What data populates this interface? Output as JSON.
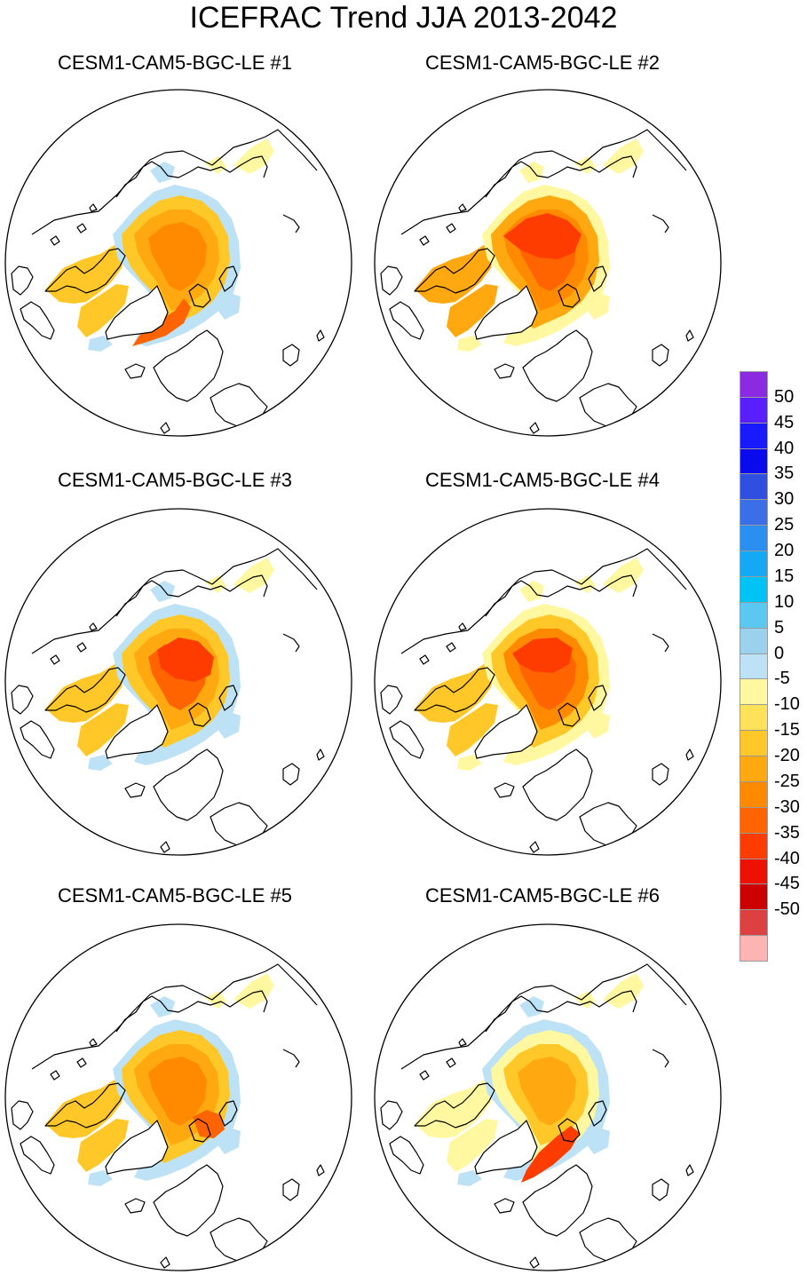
{
  "figure": {
    "title": "ICEFRAC Trend JJA 2013-2042",
    "panels": [
      {
        "title": "CESM1-CAM5-BGC-LE #1",
        "variant": "m1"
      },
      {
        "title": "CESM1-CAM5-BGC-LE #2",
        "variant": "m2"
      },
      {
        "title": "CESM1-CAM5-BGC-LE #3",
        "variant": "m3"
      },
      {
        "title": "CESM1-CAM5-BGC-LE #4",
        "variant": "m4"
      },
      {
        "title": "CESM1-CAM5-BGC-LE #5",
        "variant": "m5"
      },
      {
        "title": "CESM1-CAM5-BGC-LE #6",
        "variant": "m6"
      }
    ]
  },
  "colorbar": {
    "labels": [
      "50",
      "45",
      "40",
      "35",
      "30",
      "25",
      "20",
      "15",
      "10",
      "5",
      "0",
      "-5",
      "-10",
      "-15",
      "-20",
      "-25",
      "-30",
      "-35",
      "-40",
      "-45",
      "-50"
    ],
    "colors": [
      "#8a2be2",
      "#5a1fff",
      "#1a1aff",
      "#0a0aee",
      "#2e4fe0",
      "#3a6fe8",
      "#2a8ff0",
      "#14a8f5",
      "#00c3f5",
      "#5ac8f0",
      "#9ad2ee",
      "#bde2f5",
      "#fff8a0",
      "#ffe25a",
      "#ffc828",
      "#ffa810",
      "#ff8a00",
      "#ff6400",
      "#ff3c00",
      "#ee1000",
      "#cc0000",
      "#dc4040",
      "#ffb4b4"
    ]
  },
  "colors": {
    "land_outline": "#000000",
    "pale_yellow": "#fff8a0",
    "yellow": "#ffe25a",
    "gold": "#ffc828",
    "orange": "#ffa810",
    "dark_orange": "#ff8a00",
    "red_orange": "#ff6400",
    "red": "#ff3c00",
    "light_blue": "#bde2f5",
    "blue": "#9ad2ee"
  }
}
